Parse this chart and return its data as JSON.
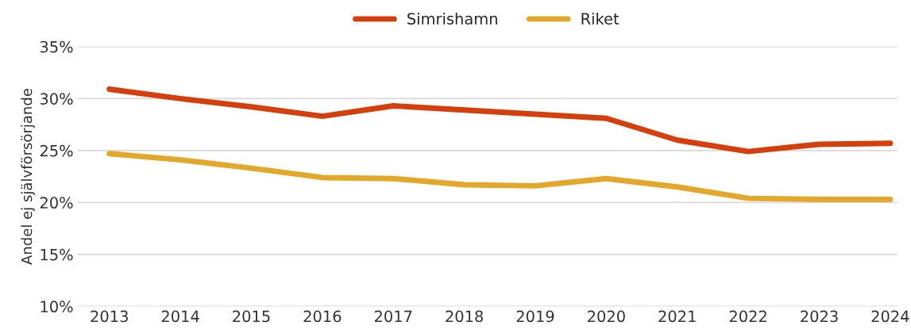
{
  "chart_data": {
    "type": "line",
    "ylabel": "Andel ej självförsörjande",
    "categories": [
      "2013",
      "2014",
      "2015",
      "2016",
      "2017",
      "2018",
      "2019",
      "2020",
      "2021",
      "2022",
      "2023",
      "2024"
    ],
    "series": [
      {
        "name": "Simrishamn",
        "color": "#d53e0d",
        "values": [
          30.9,
          30.0,
          29.2,
          28.3,
          29.3,
          28.9,
          28.5,
          28.1,
          26.0,
          24.9,
          25.6,
          25.7
        ]
      },
      {
        "name": "Riket",
        "color": "#e3a829",
        "values": [
          24.7,
          24.1,
          23.3,
          22.4,
          22.3,
          21.7,
          21.6,
          22.3,
          21.5,
          20.4,
          20.3,
          20.3
        ]
      }
    ],
    "ylim": [
      10,
      35
    ],
    "yticks": [
      {
        "value": 10,
        "label": "10%"
      },
      {
        "value": 15,
        "label": "15%"
      },
      {
        "value": 20,
        "label": "20%"
      },
      {
        "value": 25,
        "label": "25%"
      },
      {
        "value": 30,
        "label": "30%"
      },
      {
        "value": 35,
        "label": "35%"
      }
    ],
    "grid": "y",
    "legend": "top",
    "line_style": "solid",
    "marker": "none"
  }
}
